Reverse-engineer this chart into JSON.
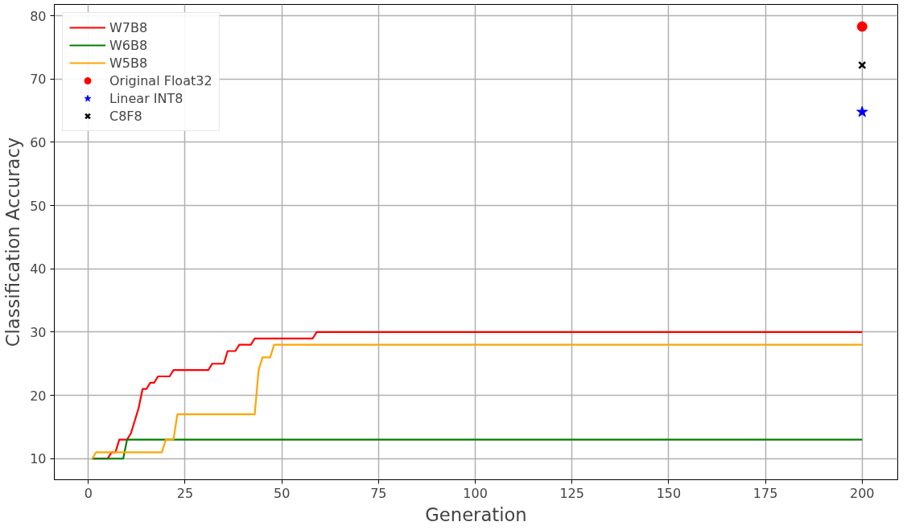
{
  "chart_data": {
    "type": "line",
    "xlabel": "Generation",
    "ylabel": "Classification Accuracy",
    "xlim": [
      -8.8,
      209.2
    ],
    "ylim": [
      6.66,
      81.8
    ],
    "xticks": [
      0,
      25,
      50,
      75,
      100,
      125,
      150,
      175,
      200
    ],
    "yticks": [
      10,
      20,
      30,
      40,
      50,
      60,
      70,
      80
    ],
    "grid": true,
    "legend": "top left",
    "series": [
      {
        "name": "W7B8",
        "color": "#ff0000",
        "x": [
          1,
          5,
          6,
          7,
          8,
          10,
          11,
          12,
          13,
          14,
          15,
          16,
          17,
          18,
          21,
          22,
          31,
          32,
          35,
          36,
          38,
          39,
          42,
          43,
          58,
          59,
          200
        ],
        "values": [
          10,
          10,
          11,
          11,
          13,
          13,
          14,
          16,
          18,
          21,
          21,
          22,
          22,
          23,
          23,
          24,
          24,
          25,
          25,
          27,
          27,
          28,
          28,
          29,
          29,
          30,
          30
        ]
      },
      {
        "name": "W6B8",
        "color": "#008000",
        "x": [
          1,
          9,
          10,
          200
        ],
        "values": [
          10,
          10,
          13,
          13
        ]
      },
      {
        "name": "W5B8",
        "color": "#ffa500",
        "x": [
          1,
          2,
          19,
          20,
          22,
          23,
          43,
          44,
          45,
          47,
          48,
          200
        ],
        "values": [
          10,
          11,
          11,
          13,
          13,
          17,
          17,
          24,
          26,
          26,
          28,
          28
        ]
      },
      {
        "name": "Original Float32",
        "color": "#ff0000",
        "type": "scatter",
        "marker": "circle",
        "x": [
          200
        ],
        "values": [
          78.3
        ]
      },
      {
        "name": "Linear INT8",
        "color": "#0000ff",
        "type": "scatter",
        "marker": "star",
        "x": [
          200
        ],
        "values": [
          64.8
        ]
      },
      {
        "name": "C8F8",
        "color": "#000000",
        "type": "scatter",
        "marker": "cross",
        "x": [
          200
        ],
        "values": [
          72.2
        ]
      }
    ]
  }
}
